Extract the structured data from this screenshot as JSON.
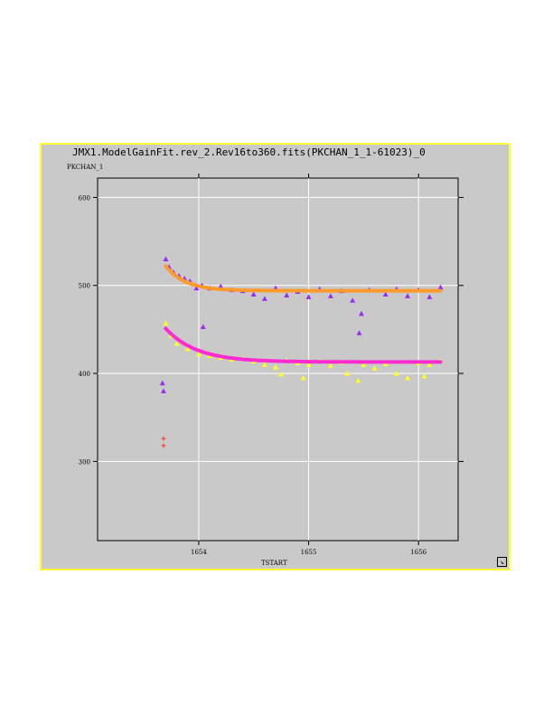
{
  "window": {
    "title": "JMX1.ModelGainFit.rev_2.Rev16to360.fits(PKCHAN_1_1-61023)_0"
  },
  "colors": {
    "background": "#c9c9c9",
    "border": "#ffff33",
    "grid": "#ffffff",
    "purple": "#9a2cf0",
    "orange": "#ff9a2a",
    "yellow": "#ffff22",
    "magenta": "#ff2ad0",
    "red": "#ff3030"
  },
  "chart_data": {
    "type": "scatter",
    "title": "JMX1.ModelGainFit.rev_2.Rev16to360.fits(PKCHAN_1_1-61023)_0",
    "xlabel": "TSTART",
    "ylabel": "PKCHAN_1",
    "xlim": [
      1653.08,
      1656.36
    ],
    "ylim": [
      210,
      622
    ],
    "xticks": [
      1654,
      1655,
      1656
    ],
    "xtick_labels": [
      "1654",
      "1655",
      "1656"
    ],
    "yticks": [
      300,
      400,
      500,
      600
    ],
    "ytick_labels": [
      "300",
      "400",
      "500",
      "600"
    ],
    "grid": true,
    "series": [
      {
        "marker": "triangle",
        "color": "#9a2cf0",
        "points": [
          [
            1653.7,
            530
          ],
          [
            1653.73,
            521
          ],
          [
            1653.77,
            515
          ],
          [
            1653.82,
            511
          ],
          [
            1653.87,
            508
          ],
          [
            1653.92,
            505
          ],
          [
            1653.98,
            497
          ],
          [
            1654.03,
            500
          ],
          [
            1654.04,
            453
          ],
          [
            1654.1,
            497
          ],
          [
            1654.2,
            499
          ],
          [
            1654.3,
            495
          ],
          [
            1654.4,
            494
          ],
          [
            1654.5,
            490
          ],
          [
            1654.6,
            485
          ],
          [
            1654.7,
            497
          ],
          [
            1654.8,
            489
          ],
          [
            1654.9,
            493
          ],
          [
            1655.0,
            487
          ],
          [
            1655.1,
            496
          ],
          [
            1655.2,
            488
          ],
          [
            1655.3,
            494
          ],
          [
            1655.4,
            483
          ],
          [
            1655.48,
            468
          ],
          [
            1655.46,
            446
          ],
          [
            1655.55,
            495
          ],
          [
            1655.7,
            490
          ],
          [
            1655.8,
            496
          ],
          [
            1655.9,
            488
          ],
          [
            1656.0,
            495
          ],
          [
            1656.1,
            487
          ],
          [
            1656.2,
            498
          ],
          [
            1653.67,
            389
          ],
          [
            1653.68,
            380
          ]
        ]
      },
      {
        "marker": "line",
        "color": "#ff9a2a",
        "curve": {
          "asymptote": 494,
          "amplitude": 28,
          "tau": 0.18,
          "x0": 1653.7,
          "x1": 1656.2
        }
      },
      {
        "marker": "triangle",
        "color": "#ffff22",
        "points": [
          [
            1653.7,
            457
          ],
          [
            1653.75,
            443
          ],
          [
            1653.8,
            434
          ],
          [
            1653.9,
            428
          ],
          [
            1654.0,
            422
          ],
          [
            1654.1,
            420
          ],
          [
            1654.2,
            418
          ],
          [
            1654.3,
            416
          ],
          [
            1654.4,
            417
          ],
          [
            1654.5,
            414
          ],
          [
            1654.6,
            410
          ],
          [
            1654.7,
            407
          ],
          [
            1654.75,
            399
          ],
          [
            1654.8,
            415
          ],
          [
            1654.9,
            412
          ],
          [
            1654.95,
            395
          ],
          [
            1655.0,
            410
          ],
          [
            1655.1,
            414
          ],
          [
            1655.2,
            409
          ],
          [
            1655.3,
            413
          ],
          [
            1655.35,
            400
          ],
          [
            1655.45,
            392
          ],
          [
            1655.5,
            410
          ],
          [
            1655.6,
            406
          ],
          [
            1655.7,
            411
          ],
          [
            1655.8,
            400
          ],
          [
            1655.9,
            395
          ],
          [
            1656.0,
            412
          ],
          [
            1656.05,
            397
          ],
          [
            1656.1,
            410
          ],
          [
            1656.2,
            414
          ]
        ]
      },
      {
        "marker": "line",
        "color": "#ff2ad0",
        "curve": {
          "asymptote": 413,
          "amplitude": 38,
          "tau": 0.28,
          "x0": 1653.7,
          "x1": 1656.2
        }
      },
      {
        "marker": "plus",
        "color": "#ff3030",
        "points": [
          [
            1653.68,
            326
          ],
          [
            1653.68,
            318
          ]
        ]
      }
    ]
  }
}
